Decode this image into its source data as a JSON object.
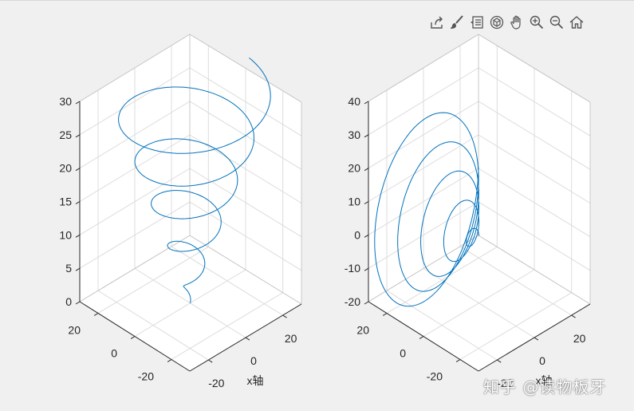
{
  "toolbar": {
    "items": [
      {
        "name": "export-icon"
      },
      {
        "name": "brush-icon"
      },
      {
        "name": "data-tips-icon"
      },
      {
        "name": "rotate-3d-icon"
      },
      {
        "name": "pan-icon"
      },
      {
        "name": "zoom-in-icon"
      },
      {
        "name": "zoom-out-icon"
      },
      {
        "name": "home-icon"
      }
    ]
  },
  "watermark": "知乎 @读物板牙",
  "colors": {
    "line": "#0072bd",
    "grid": "#dcdcdc",
    "box": "#262626",
    "pane": "#ffffff"
  },
  "chart_data": [
    {
      "type": "line",
      "projection": "3d",
      "title": "",
      "xlabel": "x轴",
      "ylabel": "",
      "zlabel": "",
      "xticks": [
        "-20",
        "0",
        "20"
      ],
      "yticks": [
        "-20",
        "0",
        "20"
      ],
      "zticks": [
        "0",
        "5",
        "10",
        "15",
        "20",
        "25",
        "30"
      ],
      "xlim": [
        -30,
        30
      ],
      "ylim": [
        -30,
        30
      ],
      "zlim": [
        0,
        30
      ],
      "grid": true,
      "series": [
        {
          "description": "expanding helix about z axis",
          "t": [
            0,
            31.4
          ],
          "x": "t*cos(t)",
          "y": "t*sin(t)",
          "z": "t"
        }
      ]
    },
    {
      "type": "line",
      "projection": "3d",
      "title": "",
      "xlabel": "x轴",
      "ylabel": "",
      "zlabel": "",
      "xticks": [
        "-20",
        "0",
        "20"
      ],
      "yticks": [
        "-20",
        "0",
        "20"
      ],
      "zticks": [
        "-20",
        "-10",
        "0",
        "10",
        "20",
        "30",
        "40"
      ],
      "xlim": [
        -30,
        30
      ],
      "ylim": [
        -30,
        30
      ],
      "zlim": [
        -20,
        40
      ],
      "grid": true,
      "series": [
        {
          "description": "expanding helix about y axis",
          "t": [
            0,
            31.4
          ],
          "x": "t*cos(t)",
          "y": "t",
          "z": "t*sin(t)"
        }
      ]
    }
  ]
}
